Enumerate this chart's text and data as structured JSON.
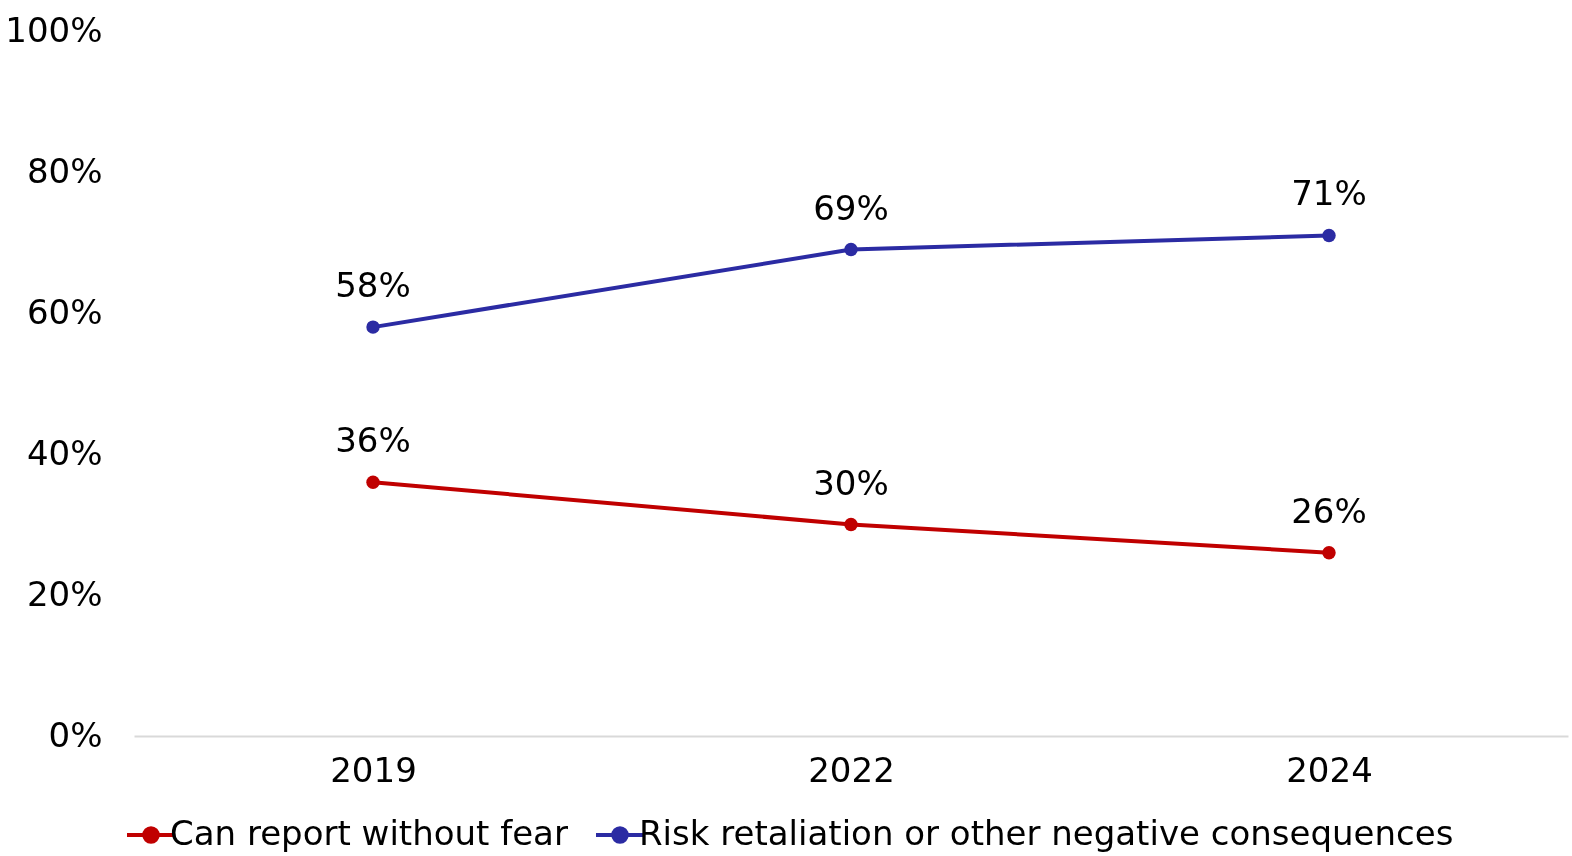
{
  "chart_data": {
    "type": "line",
    "categories": [
      "2019",
      "2022",
      "2024"
    ],
    "series": [
      {
        "name": "Can report without fear",
        "color": "#c00000",
        "values": [
          36,
          30,
          26
        ],
        "value_labels": [
          "36%",
          "30%",
          "26%"
        ]
      },
      {
        "name": "Risk retaliation or other negative consequences",
        "color": "#2b2ba3",
        "values": [
          58,
          69,
          71
        ],
        "value_labels": [
          "58%",
          "69%",
          "71%"
        ]
      }
    ],
    "ylim": [
      0,
      100
    ],
    "yticks": [
      {
        "value": 0,
        "label": "0%"
      },
      {
        "value": 20,
        "label": "20%"
      },
      {
        "value": 40,
        "label": "40%"
      },
      {
        "value": 60,
        "label": "60%"
      },
      {
        "value": 80,
        "label": "80%"
      },
      {
        "value": 100,
        "label": "100%"
      }
    ],
    "grid": false,
    "legend": "bottom",
    "marker": "circle",
    "line_style": "solid"
  }
}
